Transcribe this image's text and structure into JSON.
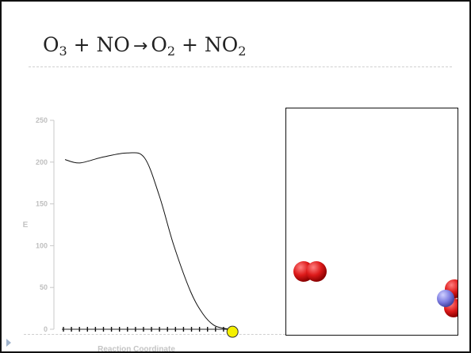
{
  "title": {
    "reactant1": "O",
    "reactant1_sub": "3",
    "plus1": " + ",
    "reactant2": "NO",
    "arrow": "→",
    "product1": "O",
    "product1_sub": "2",
    "plus2": " + ",
    "product2": "NO",
    "product2_sub": "2"
  },
  "chart_data": {
    "type": "line",
    "xlabel": "Reaction Coordinate",
    "ylabel": "E",
    "ylim": [
      0,
      250
    ],
    "yticks": [
      0,
      50,
      100,
      150,
      200,
      250
    ],
    "xlim": [
      0,
      1
    ],
    "x_minor_tick_count": 22,
    "series": [
      {
        "x": [
          0.0,
          0.07,
          0.18,
          0.3,
          0.38,
          0.45,
          0.52,
          0.6,
          0.66,
          0.71,
          0.76,
          0.8
        ],
        "values": [
          203,
          199,
          206,
          211,
          205,
          160,
          100,
          45,
          18,
          5,
          1,
          0
        ]
      }
    ],
    "marker": {
      "x": 0.8,
      "y": -3,
      "color": "#f5f000"
    }
  },
  "molecules": {
    "o2_color": "#cc1111",
    "n_color": "#7777dd",
    "o_color": "#cc1111"
  }
}
